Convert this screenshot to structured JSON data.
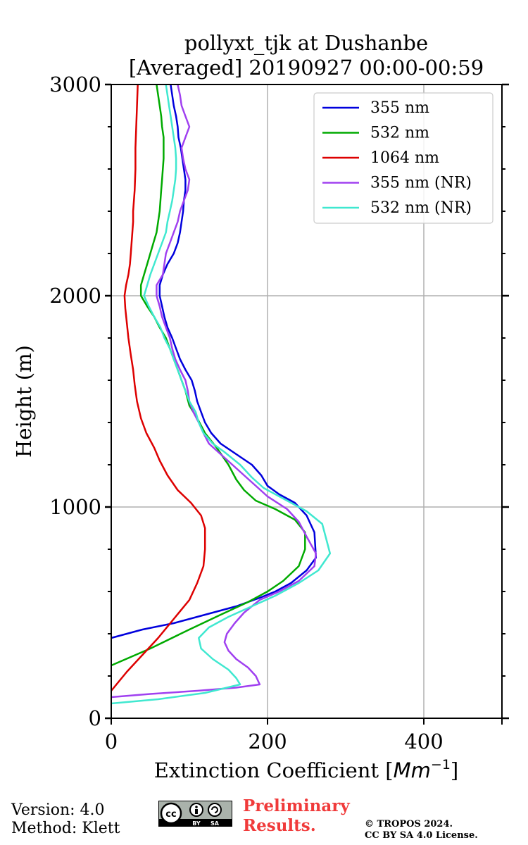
{
  "chart_data": {
    "type": "line",
    "title": [
      "pollyxt_tjk at Dushanbe",
      "[Averaged] 20190927 00:00-00:59"
    ],
    "xlabel": "Extinction Coefficient [Mm⁻¹]",
    "xlabel_main": "Extinction Coefficient [",
    "xlabel_unit": "Mm",
    "xlabel_exp": "−1",
    "xlabel_close": "]",
    "ylabel": "Height (m)",
    "xlim": [
      0,
      500
    ],
    "ylim": [
      0,
      3000
    ],
    "xticks": [
      0,
      200,
      400
    ],
    "xtick_labels": [
      "0",
      "200",
      "400"
    ],
    "yticks": [
      0,
      1000,
      2000,
      3000
    ],
    "ytick_labels": [
      "0",
      "1000",
      "2000",
      "3000"
    ],
    "y_minor_step": 200,
    "grid": true,
    "legend_position": "top-right",
    "series": [
      {
        "name": "355 nm",
        "color": "#0000dd",
        "points": [
          [
            0,
            380
          ],
          [
            40,
            420
          ],
          [
            80,
            450
          ],
          [
            120,
            490
          ],
          [
            160,
            530
          ],
          [
            190,
            570
          ],
          [
            210,
            600
          ],
          [
            230,
            640
          ],
          [
            250,
            700
          ],
          [
            262,
            760
          ],
          [
            260,
            880
          ],
          [
            250,
            960
          ],
          [
            235,
            1020
          ],
          [
            215,
            1060
          ],
          [
            200,
            1100
          ],
          [
            192,
            1150
          ],
          [
            180,
            1200
          ],
          [
            160,
            1250
          ],
          [
            140,
            1300
          ],
          [
            128,
            1350
          ],
          [
            120,
            1400
          ],
          [
            115,
            1450
          ],
          [
            110,
            1500
          ],
          [
            107,
            1550
          ],
          [
            103,
            1600
          ],
          [
            95,
            1650
          ],
          [
            88,
            1700
          ],
          [
            83,
            1750
          ],
          [
            78,
            1800
          ],
          [
            72,
            1850
          ],
          [
            68,
            1900
          ],
          [
            65,
            1950
          ],
          [
            62,
            2000
          ],
          [
            62,
            2050
          ],
          [
            66,
            2100
          ],
          [
            72,
            2150
          ],
          [
            80,
            2200
          ],
          [
            85,
            2250
          ],
          [
            88,
            2300
          ],
          [
            90,
            2350
          ],
          [
            92,
            2400
          ],
          [
            93,
            2450
          ],
          [
            95,
            2500
          ],
          [
            95,
            2550
          ],
          [
            93,
            2600
          ],
          [
            91,
            2650
          ],
          [
            89,
            2700
          ],
          [
            86,
            2750
          ],
          [
            85,
            2800
          ],
          [
            83,
            2850
          ],
          [
            80,
            2900
          ],
          [
            78,
            2950
          ],
          [
            76,
            3000
          ]
        ]
      },
      {
        "name": "532 nm",
        "color": "#00aa00",
        "points": [
          [
            0,
            250
          ],
          [
            50,
            330
          ],
          [
            100,
            420
          ],
          [
            140,
            490
          ],
          [
            175,
            550
          ],
          [
            200,
            600
          ],
          [
            220,
            650
          ],
          [
            240,
            720
          ],
          [
            248,
            800
          ],
          [
            248,
            880
          ],
          [
            235,
            940
          ],
          [
            210,
            990
          ],
          [
            185,
            1030
          ],
          [
            170,
            1080
          ],
          [
            160,
            1130
          ],
          [
            150,
            1200
          ],
          [
            135,
            1280
          ],
          [
            120,
            1350
          ],
          [
            110,
            1420
          ],
          [
            100,
            1480
          ],
          [
            95,
            1550
          ],
          [
            90,
            1600
          ],
          [
            85,
            1650
          ],
          [
            80,
            1700
          ],
          [
            75,
            1750
          ],
          [
            70,
            1800
          ],
          [
            62,
            1850
          ],
          [
            55,
            1900
          ],
          [
            46,
            1950
          ],
          [
            38,
            2000
          ],
          [
            38,
            2050
          ],
          [
            42,
            2100
          ],
          [
            46,
            2150
          ],
          [
            50,
            2200
          ],
          [
            54,
            2250
          ],
          [
            58,
            2300
          ],
          [
            60,
            2350
          ],
          [
            62,
            2400
          ],
          [
            63,
            2450
          ],
          [
            64,
            2500
          ],
          [
            65,
            2550
          ],
          [
            66,
            2600
          ],
          [
            67,
            2650
          ],
          [
            67,
            2700
          ],
          [
            67,
            2750
          ],
          [
            65,
            2800
          ],
          [
            64,
            2850
          ],
          [
            62,
            2900
          ],
          [
            60,
            2950
          ],
          [
            58,
            3000
          ]
        ]
      },
      {
        "name": "1064 nm",
        "color": "#dd0000",
        "points": [
          [
            0,
            130
          ],
          [
            20,
            220
          ],
          [
            40,
            300
          ],
          [
            60,
            380
          ],
          [
            80,
            470
          ],
          [
            100,
            560
          ],
          [
            110,
            640
          ],
          [
            118,
            720
          ],
          [
            120,
            800
          ],
          [
            120,
            900
          ],
          [
            115,
            960
          ],
          [
            102,
            1020
          ],
          [
            85,
            1080
          ],
          [
            72,
            1150
          ],
          [
            62,
            1220
          ],
          [
            55,
            1280
          ],
          [
            45,
            1350
          ],
          [
            38,
            1420
          ],
          [
            33,
            1500
          ],
          [
            30,
            1580
          ],
          [
            28,
            1650
          ],
          [
            25,
            1720
          ],
          [
            22,
            1800
          ],
          [
            20,
            1870
          ],
          [
            18,
            1940
          ],
          [
            17,
            2000
          ],
          [
            19,
            2050
          ],
          [
            22,
            2100
          ],
          [
            24,
            2150
          ],
          [
            25,
            2200
          ],
          [
            26,
            2250
          ],
          [
            27,
            2300
          ],
          [
            28,
            2350
          ],
          [
            28,
            2400
          ],
          [
            29,
            2450
          ],
          [
            30,
            2500
          ],
          [
            31,
            2600
          ],
          [
            31,
            2700
          ],
          [
            32,
            2800
          ],
          [
            33,
            2900
          ],
          [
            34,
            3000
          ]
        ]
      },
      {
        "name": "355 nm (NR)",
        "color": "#a040f0",
        "points": [
          [
            0,
            100
          ],
          [
            50,
            115
          ],
          [
            110,
            130
          ],
          [
            160,
            145
          ],
          [
            190,
            160
          ],
          [
            185,
            200
          ],
          [
            175,
            240
          ],
          [
            160,
            280
          ],
          [
            150,
            320
          ],
          [
            145,
            360
          ],
          [
            148,
            400
          ],
          [
            158,
            450
          ],
          [
            170,
            500
          ],
          [
            190,
            560
          ],
          [
            215,
            600
          ],
          [
            240,
            650
          ],
          [
            260,
            720
          ],
          [
            262,
            780
          ],
          [
            250,
            860
          ],
          [
            240,
            930
          ],
          [
            225,
            990
          ],
          [
            200,
            1050
          ],
          [
            185,
            1100
          ],
          [
            170,
            1150
          ],
          [
            155,
            1200
          ],
          [
            140,
            1250
          ],
          [
            125,
            1300
          ],
          [
            118,
            1350
          ],
          [
            112,
            1400
          ],
          [
            105,
            1450
          ],
          [
            100,
            1500
          ],
          [
            98,
            1550
          ],
          [
            95,
            1600
          ],
          [
            88,
            1650
          ],
          [
            82,
            1700
          ],
          [
            78,
            1750
          ],
          [
            75,
            1800
          ],
          [
            70,
            1850
          ],
          [
            65,
            1900
          ],
          [
            62,
            1950
          ],
          [
            58,
            2000
          ],
          [
            58,
            2050
          ],
          [
            66,
            2100
          ],
          [
            68,
            2150
          ],
          [
            70,
            2200
          ],
          [
            75,
            2250
          ],
          [
            80,
            2300
          ],
          [
            85,
            2350
          ],
          [
            88,
            2400
          ],
          [
            93,
            2450
          ],
          [
            98,
            2500
          ],
          [
            100,
            2550
          ],
          [
            95,
            2600
          ],
          [
            92,
            2650
          ],
          [
            90,
            2700
          ],
          [
            95,
            2750
          ],
          [
            100,
            2800
          ],
          [
            95,
            2850
          ],
          [
            90,
            2900
          ],
          [
            88,
            2950
          ],
          [
            85,
            3000
          ]
        ]
      },
      {
        "name": "532 nm (NR)",
        "color": "#40e8d0",
        "points": [
          [
            0,
            70
          ],
          [
            60,
            90
          ],
          [
            120,
            120
          ],
          [
            165,
            160
          ],
          [
            160,
            190
          ],
          [
            150,
            230
          ],
          [
            130,
            280
          ],
          [
            115,
            330
          ],
          [
            112,
            380
          ],
          [
            125,
            430
          ],
          [
            150,
            480
          ],
          [
            180,
            530
          ],
          [
            210,
            580
          ],
          [
            240,
            640
          ],
          [
            265,
            700
          ],
          [
            280,
            780
          ],
          [
            275,
            850
          ],
          [
            270,
            920
          ],
          [
            250,
            980
          ],
          [
            225,
            1030
          ],
          [
            195,
            1090
          ],
          [
            180,
            1140
          ],
          [
            165,
            1200
          ],
          [
            145,
            1260
          ],
          [
            130,
            1300
          ],
          [
            118,
            1350
          ],
          [
            112,
            1400
          ],
          [
            108,
            1450
          ],
          [
            100,
            1500
          ],
          [
            95,
            1550
          ],
          [
            90,
            1600
          ],
          [
            85,
            1650
          ],
          [
            80,
            1700
          ],
          [
            75,
            1750
          ],
          [
            68,
            1800
          ],
          [
            63,
            1850
          ],
          [
            55,
            1900
          ],
          [
            48,
            1950
          ],
          [
            42,
            2000
          ],
          [
            46,
            2050
          ],
          [
            50,
            2100
          ],
          [
            55,
            2150
          ],
          [
            60,
            2200
          ],
          [
            65,
            2250
          ],
          [
            70,
            2300
          ],
          [
            72,
            2350
          ],
          [
            75,
            2400
          ],
          [
            78,
            2450
          ],
          [
            80,
            2500
          ],
          [
            82,
            2550
          ],
          [
            83,
            2600
          ],
          [
            83,
            2650
          ],
          [
            82,
            2700
          ],
          [
            80,
            2750
          ],
          [
            78,
            2800
          ],
          [
            76,
            2850
          ],
          [
            74,
            2900
          ],
          [
            72,
            2950
          ],
          [
            70,
            3000
          ]
        ]
      }
    ]
  },
  "footer": {
    "version": "Version: 4.0",
    "method": "Method: Klett",
    "prelim_line1": "Preliminary",
    "prelim_line2": "Results.",
    "copyright_line1": "© TROPOS 2024.",
    "copyright_line2": "CC BY SA 4.0 License.",
    "cc_badge": {
      "icon": "cc-by-sa-icon",
      "lettering": [
        "cc",
        "BY",
        "SA"
      ]
    }
  }
}
